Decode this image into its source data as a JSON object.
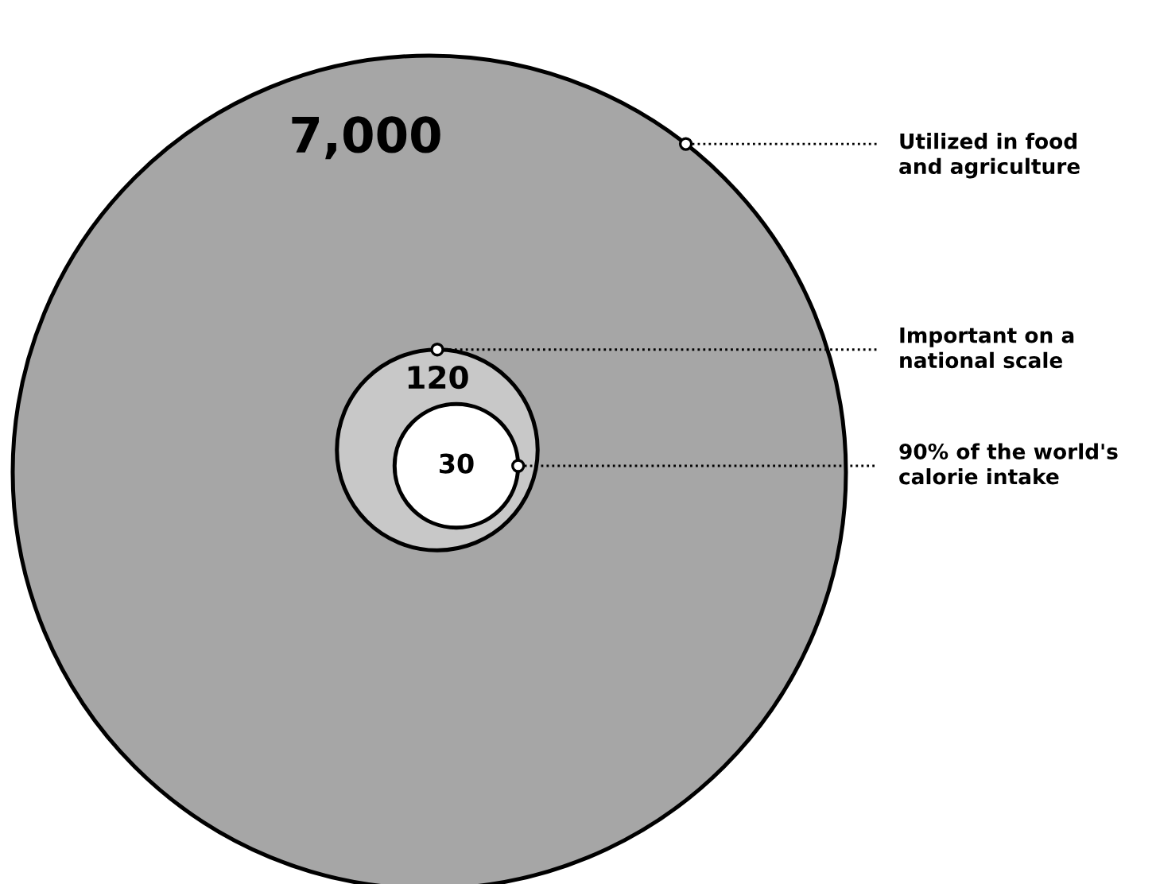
{
  "chart_data": {
    "type": "other",
    "categories": [
      "Utilized in food\nand agriculture",
      "Important on a\nnational scale",
      "90% of the world's\ncalorie intake"
    ],
    "values": [
      7000,
      120,
      30
    ],
    "value_labels": [
      "7,000",
      "120",
      "30"
    ],
    "colors": [
      "#a6a6a6",
      "#c8c8c8",
      "#ffffff"
    ]
  }
}
